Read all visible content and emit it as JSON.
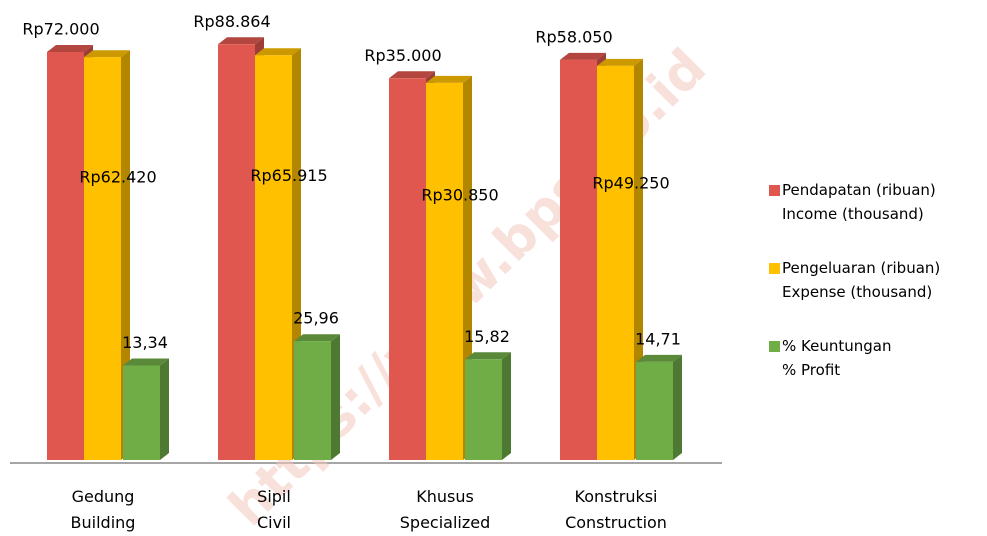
{
  "chart_data": {
    "type": "bar3d",
    "log": true,
    "ylim": [
      1,
      100000
    ],
    "watermark": "https://www.bps.go.id",
    "categories": [
      "Gedung",
      "Sipil",
      "Khusus",
      "Konstruksi"
    ],
    "categories_en": [
      "Building",
      "Civil",
      "Specialized",
      "Construction"
    ],
    "series": [
      {
        "name": "Pendapatan (ribuan)\nIncome (thousand)",
        "color": "#e0574f",
        "values": [
          72000,
          88864,
          35000,
          58050
        ],
        "value_labels": [
          "Rp72.000",
          "Rp88.864",
          "Rp35.000",
          "Rp58.050"
        ]
      },
      {
        "name": "Pengeluaran (ribuan)\nExpense (thousand)",
        "color": "#ffc000",
        "values": [
          62420,
          65915,
          30850,
          49250
        ],
        "value_labels": [
          "Rp62.420",
          "Rp65.915",
          "Rp30.850",
          "Rp49.250"
        ]
      },
      {
        "name": "% Keuntungan\n% Profit",
        "color": "#70ad47",
        "values": [
          13.34,
          25.96,
          15.82,
          14.71
        ],
        "value_labels": [
          "13,34",
          "25,96",
          "15,82",
          "14,71"
        ]
      }
    ]
  }
}
